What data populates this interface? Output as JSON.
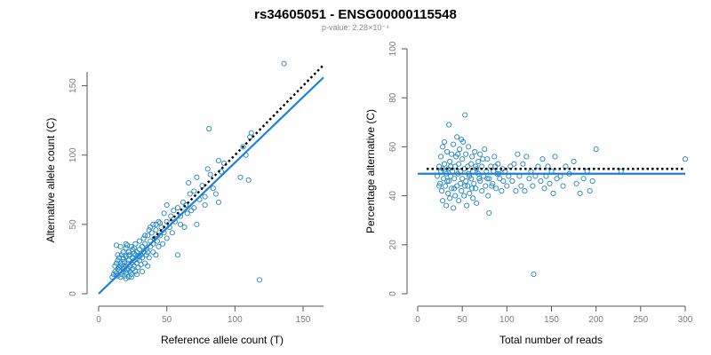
{
  "chart_data": [
    {
      "type": "scatter",
      "title": "rs34605051 - ENSG00000115548",
      "subtitle": "p-value: 2.28×10⁻⁴",
      "xlabel": "Reference allele count (T)",
      "ylabel": "Alternative allele count (C)",
      "xlim": [
        0,
        165
      ],
      "ylim": [
        0,
        160
      ],
      "xticks": [
        "0",
        "50",
        "100",
        "150"
      ],
      "yticks": [
        "0",
        "50",
        "100",
        "150"
      ],
      "grid": false,
      "points": [
        [
          10,
          12
        ],
        [
          11,
          14
        ],
        [
          12,
          16
        ],
        [
          12,
          20
        ],
        [
          13,
          15
        ],
        [
          13,
          22
        ],
        [
          13,
          35
        ],
        [
          14,
          13
        ],
        [
          14,
          18
        ],
        [
          14,
          24
        ],
        [
          15,
          17
        ],
        [
          15,
          19
        ],
        [
          15,
          26
        ],
        [
          16,
          12
        ],
        [
          16,
          20
        ],
        [
          16,
          22
        ],
        [
          17,
          14
        ],
        [
          17,
          21
        ],
        [
          17,
          28
        ],
        [
          18,
          16
        ],
        [
          18,
          18
        ],
        [
          18,
          25
        ],
        [
          18,
          30
        ],
        [
          19,
          13
        ],
        [
          19,
          19
        ],
        [
          19,
          23
        ],
        [
          20,
          15
        ],
        [
          20,
          20
        ],
        [
          20,
          27
        ],
        [
          20,
          33
        ],
        [
          21,
          17
        ],
        [
          21,
          22
        ],
        [
          21,
          35
        ],
        [
          22,
          12
        ],
        [
          22,
          18
        ],
        [
          22,
          24
        ],
        [
          22,
          30
        ],
        [
          23,
          16
        ],
        [
          23,
          20
        ],
        [
          23,
          28
        ],
        [
          24,
          14
        ],
        [
          24,
          22
        ],
        [
          24,
          34
        ],
        [
          25,
          18
        ],
        [
          25,
          26
        ],
        [
          25,
          32
        ],
        [
          26,
          20
        ],
        [
          26,
          24
        ],
        [
          26,
          29
        ],
        [
          27,
          16
        ],
        [
          27,
          28
        ],
        [
          27,
          36
        ],
        [
          28,
          22
        ],
        [
          28,
          30
        ],
        [
          28,
          25
        ],
        [
          29,
          19
        ],
        [
          29,
          27
        ],
        [
          30,
          24
        ],
        [
          30,
          32
        ],
        [
          30,
          38
        ],
        [
          31,
          21
        ],
        [
          31,
          28
        ],
        [
          32,
          26
        ],
        [
          32,
          34
        ],
        [
          33,
          30
        ],
        [
          33,
          40
        ],
        [
          34,
          22
        ],
        [
          34,
          36
        ],
        [
          35,
          28
        ],
        [
          35,
          32
        ],
        [
          36,
          42
        ],
        [
          36,
          30
        ],
        [
          37,
          26
        ],
        [
          37,
          46
        ],
        [
          38,
          34
        ],
        [
          38,
          38
        ],
        [
          39,
          44
        ],
        [
          40,
          30
        ],
        [
          40,
          50
        ],
        [
          40,
          36
        ],
        [
          41,
          40
        ],
        [
          42,
          28
        ],
        [
          42,
          46
        ],
        [
          43,
          38
        ],
        [
          44,
          34
        ],
        [
          44,
          52
        ],
        [
          45,
          42
        ],
        [
          46,
          48
        ],
        [
          47,
          36
        ],
        [
          48,
          44
        ],
        [
          48,
          58
        ],
        [
          50,
          40
        ],
        [
          50,
          52
        ],
        [
          52,
          48
        ],
        [
          53,
          56
        ],
        [
          54,
          44
        ],
        [
          55,
          60
        ],
        [
          56,
          52
        ],
        [
          58,
          28
        ],
        [
          58,
          62
        ],
        [
          60,
          50
        ],
        [
          60,
          56
        ],
        [
          62,
          66
        ],
        [
          63,
          48
        ],
        [
          64,
          64
        ],
        [
          65,
          58
        ],
        [
          66,
          80
        ],
        [
          67,
          72
        ],
        [
          68,
          60
        ],
        [
          70,
          74
        ],
        [
          70,
          62
        ],
        [
          72,
          50
        ],
        [
          72,
          84
        ],
        [
          74,
          68
        ],
        [
          76,
          78
        ],
        [
          78,
          70
        ],
        [
          78,
          64
        ],
        [
          80,
          90
        ],
        [
          81,
          119
        ],
        [
          82,
          86
        ],
        [
          84,
          76
        ],
        [
          86,
          72
        ],
        [
          88,
          66
        ],
        [
          88,
          96
        ],
        [
          90,
          88
        ],
        [
          92,
          94
        ],
        [
          104,
          84
        ],
        [
          106,
          106
        ],
        [
          108,
          100
        ],
        [
          110,
          82
        ],
        [
          111,
          113
        ],
        [
          112,
          116
        ],
        [
          118,
          10
        ],
        [
          136,
          166
        ],
        [
          18,
          26
        ],
        [
          22,
          28
        ],
        [
          26,
          33
        ],
        [
          30,
          27
        ],
        [
          34,
          42
        ],
        [
          38,
          48
        ],
        [
          20,
          11
        ],
        [
          24,
          12
        ],
        [
          28,
          14
        ],
        [
          32,
          16
        ],
        [
          16,
          34
        ],
        [
          20,
          36
        ],
        [
          36,
          20
        ],
        [
          14,
          28
        ],
        [
          45,
          51
        ],
        [
          50,
          64
        ],
        [
          42,
          50
        ]
      ],
      "fit_line": [
        [
          0,
          0
        ],
        [
          165,
          156
        ]
      ],
      "reference_line": [
        [
          40,
          40
        ],
        [
          165,
          165
        ]
      ]
    },
    {
      "type": "scatter",
      "xlabel": "Total number of reads",
      "ylabel": "Percentage alternative (C)",
      "xlim": [
        0,
        300
      ],
      "ylim": [
        0,
        100
      ],
      "xticks": [
        "0",
        "50",
        "100",
        "150",
        "200",
        "250",
        "300"
      ],
      "yticks": [
        "0",
        "20",
        "40",
        "60",
        "80",
        "100"
      ],
      "grid": false,
      "points": [
        [
          22,
          48
        ],
        [
          24,
          52
        ],
        [
          25,
          45
        ],
        [
          26,
          50
        ],
        [
          26,
          56
        ],
        [
          27,
          42
        ],
        [
          28,
          60
        ],
        [
          28,
          38
        ],
        [
          29,
          47
        ],
        [
          30,
          53
        ],
        [
          30,
          62
        ],
        [
          31,
          44
        ],
        [
          32,
          49
        ],
        [
          32,
          36
        ],
        [
          33,
          58
        ],
        [
          34,
          41
        ],
        [
          34,
          51
        ],
        [
          35,
          46
        ],
        [
          35,
          69
        ],
        [
          36,
          54
        ],
        [
          36,
          39
        ],
        [
          37,
          48
        ],
        [
          38,
          57
        ],
        [
          38,
          43
        ],
        [
          39,
          50
        ],
        [
          40,
          35
        ],
        [
          40,
          61
        ],
        [
          41,
          47
        ],
        [
          42,
          52
        ],
        [
          42,
          40
        ],
        [
          43,
          56
        ],
        [
          44,
          44
        ],
        [
          44,
          64
        ],
        [
          45,
          49
        ],
        [
          46,
          38
        ],
        [
          46,
          53
        ],
        [
          47,
          59
        ],
        [
          48,
          45
        ],
        [
          48,
          50
        ],
        [
          49,
          42
        ],
        [
          50,
          55
        ],
        [
          50,
          47
        ],
        [
          51,
          62
        ],
        [
          52,
          40
        ],
        [
          52,
          51
        ],
        [
          53,
          73
        ],
        [
          54,
          46
        ],
        [
          54,
          57
        ],
        [
          55,
          36
        ],
        [
          56,
          52
        ],
        [
          56,
          44
        ],
        [
          57,
          60
        ],
        [
          58,
          48
        ],
        [
          58,
          41
        ],
        [
          60,
          53
        ],
        [
          60,
          47
        ],
        [
          61,
          56
        ],
        [
          62,
          39
        ],
        [
          62,
          50
        ],
        [
          63,
          45
        ],
        [
          64,
          58
        ],
        [
          65,
          43
        ],
        [
          66,
          51
        ],
        [
          66,
          37
        ],
        [
          68,
          49
        ],
        [
          68,
          54
        ],
        [
          70,
          46
        ],
        [
          70,
          57
        ],
        [
          72,
          42
        ],
        [
          72,
          52
        ],
        [
          74,
          48
        ],
        [
          75,
          59
        ],
        [
          76,
          44
        ],
        [
          77,
          50
        ],
        [
          78,
          55
        ],
        [
          79,
          40
        ],
        [
          80,
          47
        ],
        [
          80,
          33
        ],
        [
          82,
          52
        ],
        [
          84,
          45
        ],
        [
          85,
          50
        ],
        [
          86,
          56
        ],
        [
          88,
          43
        ],
        [
          89,
          49
        ],
        [
          90,
          53
        ],
        [
          92,
          47
        ],
        [
          94,
          42
        ],
        [
          95,
          51
        ],
        [
          96,
          46
        ],
        [
          98,
          50
        ],
        [
          100,
          44
        ],
        [
          102,
          48
        ],
        [
          104,
          52
        ],
        [
          106,
          46
        ],
        [
          108,
          53
        ],
        [
          110,
          42
        ],
        [
          112,
          57
        ],
        [
          114,
          48
        ],
        [
          116,
          44
        ],
        [
          118,
          53
        ],
        [
          120,
          42
        ],
        [
          122,
          56
        ],
        [
          125,
          47
        ],
        [
          127,
          50
        ],
        [
          129,
          44
        ],
        [
          130,
          8
        ],
        [
          132,
          48
        ],
        [
          135,
          52
        ],
        [
          138,
          46
        ],
        [
          140,
          55
        ],
        [
          142,
          43
        ],
        [
          144,
          48
        ],
        [
          146,
          52
        ],
        [
          148,
          45
        ],
        [
          150,
          50
        ],
        [
          152,
          41
        ],
        [
          154,
          56
        ],
        [
          156,
          47
        ],
        [
          160,
          48
        ],
        [
          163,
          44
        ],
        [
          166,
          52
        ],
        [
          170,
          49
        ],
        [
          175,
          54
        ],
        [
          178,
          45
        ],
        [
          182,
          41
        ],
        [
          186,
          47
        ],
        [
          190,
          50
        ],
        [
          193,
          42
        ],
        [
          196,
          46
        ],
        [
          200,
          59
        ],
        [
          228,
          50
        ],
        [
          300,
          55
        ],
        [
          24,
          44
        ],
        [
          28,
          51
        ],
        [
          33,
          46
        ],
        [
          37,
          52
        ],
        [
          41,
          43
        ],
        [
          45,
          57
        ],
        [
          49,
          63
        ],
        [
          53,
          44
        ],
        [
          57,
          49
        ],
        [
          61,
          43
        ],
        [
          65,
          52
        ],
        [
          69,
          47
        ],
        [
          73,
          55
        ],
        [
          78,
          47
        ],
        [
          83,
          44
        ],
        [
          87,
          52
        ],
        [
          91,
          49
        ]
      ],
      "fit_line": [
        [
          0,
          49
        ],
        [
          300,
          49
        ]
      ],
      "reference_line": [
        [
          10,
          51
        ],
        [
          300,
          51
        ]
      ]
    }
  ]
}
